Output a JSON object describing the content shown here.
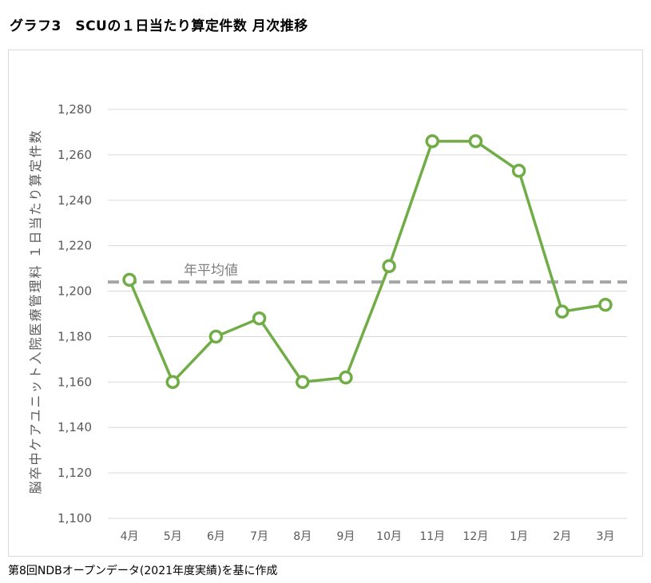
{
  "title": "グラフ3　SCUの１日当たり算定件数 月次推移",
  "footer": "第8回NDBオープンデータ(2021年度実績)を基に作成",
  "colors": {
    "line": "#70ad47",
    "average": "#a6a6a6",
    "grid": "#d9d9d9"
  },
  "chart_data": {
    "type": "line",
    "title": "",
    "xlabel": "",
    "ylabel": "脳卒中ケアユニット入院医療管理料 １日当たり算定件数",
    "categories": [
      "4月",
      "5月",
      "6月",
      "7月",
      "8月",
      "9月",
      "10月",
      "11月",
      "12月",
      "1月",
      "2月",
      "3月"
    ],
    "series": [
      {
        "values": [
          1205,
          1160,
          1180,
          1188,
          1160,
          1162,
          1211,
          1266,
          1266,
          1253,
          1191,
          1194
        ]
      }
    ],
    "average": {
      "label": "年平均値",
      "value": 1204
    },
    "ylim": [
      1100,
      1280
    ],
    "yticks": [
      "1,100",
      "1,120",
      "1,140",
      "1,160",
      "1,180",
      "1,200",
      "1,220",
      "1,240",
      "1,260",
      "1,280"
    ],
    "grid": true
  }
}
